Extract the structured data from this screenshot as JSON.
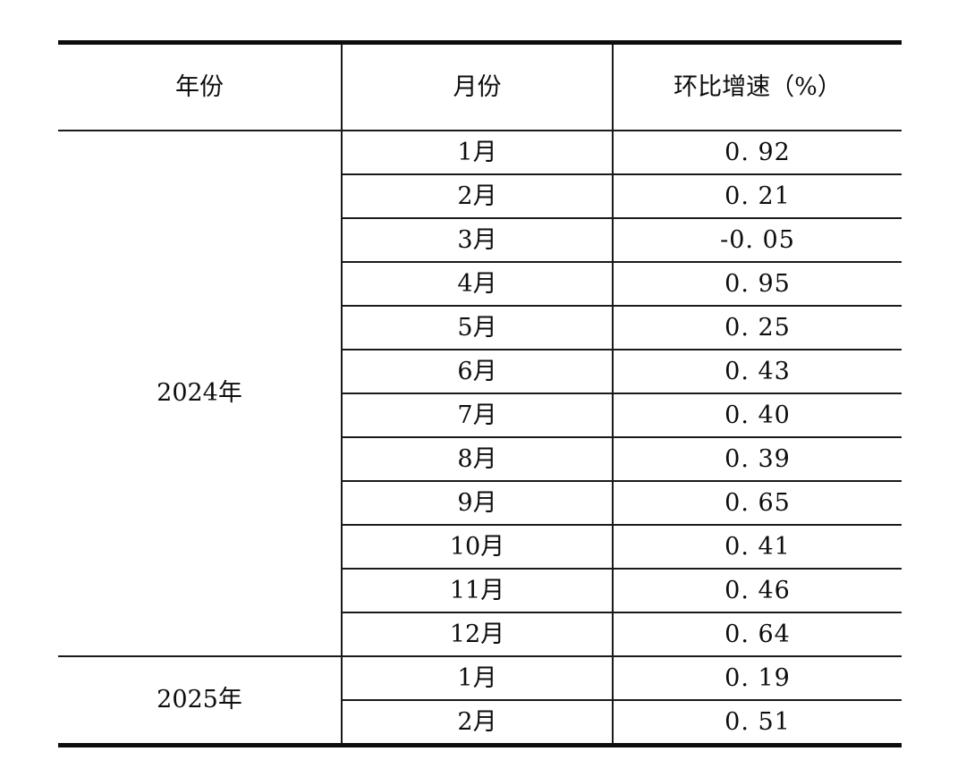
{
  "table": {
    "headers": {
      "year": "年份",
      "month": "月份",
      "rate": "环比增速（%）"
    },
    "groups": [
      {
        "year": "2024年",
        "rows": [
          {
            "month": "1月",
            "rate": "0. 92"
          },
          {
            "month": "2月",
            "rate": "0. 21"
          },
          {
            "month": "3月",
            "rate": "-0. 05"
          },
          {
            "month": "4月",
            "rate": "0. 95"
          },
          {
            "month": "5月",
            "rate": "0. 25"
          },
          {
            "month": "6月",
            "rate": "0. 43"
          },
          {
            "month": "7月",
            "rate": "0. 40"
          },
          {
            "month": "8月",
            "rate": "0. 39"
          },
          {
            "month": "9月",
            "rate": "0. 65"
          },
          {
            "month": "10月",
            "rate": "0. 41"
          },
          {
            "month": "11月",
            "rate": "0. 46"
          },
          {
            "month": "12月",
            "rate": "0. 64"
          }
        ]
      },
      {
        "year": "2025年",
        "rows": [
          {
            "month": "1月",
            "rate": "0. 19"
          },
          {
            "month": "2月",
            "rate": "0. 51"
          }
        ]
      }
    ]
  },
  "chart_data": {
    "type": "table",
    "columns": [
      "年份",
      "月份",
      "环比增速（%）"
    ],
    "rows": [
      [
        "2024年",
        "1月",
        0.92
      ],
      [
        "2024年",
        "2月",
        0.21
      ],
      [
        "2024年",
        "3月",
        -0.05
      ],
      [
        "2024年",
        "4月",
        0.95
      ],
      [
        "2024年",
        "5月",
        0.25
      ],
      [
        "2024年",
        "6月",
        0.43
      ],
      [
        "2024年",
        "7月",
        0.4
      ],
      [
        "2024年",
        "8月",
        0.39
      ],
      [
        "2024年",
        "9月",
        0.65
      ],
      [
        "2024年",
        "10月",
        0.41
      ],
      [
        "2024年",
        "11月",
        0.46
      ],
      [
        "2024年",
        "12月",
        0.64
      ],
      [
        "2025年",
        "1月",
        0.19
      ],
      [
        "2025年",
        "2月",
        0.51
      ]
    ]
  },
  "colors": {
    "background": "#ffffff",
    "text": "#0d0d0d",
    "rule_thin": "#1a1a1a",
    "rule_thick": "#0d0d0d"
  }
}
